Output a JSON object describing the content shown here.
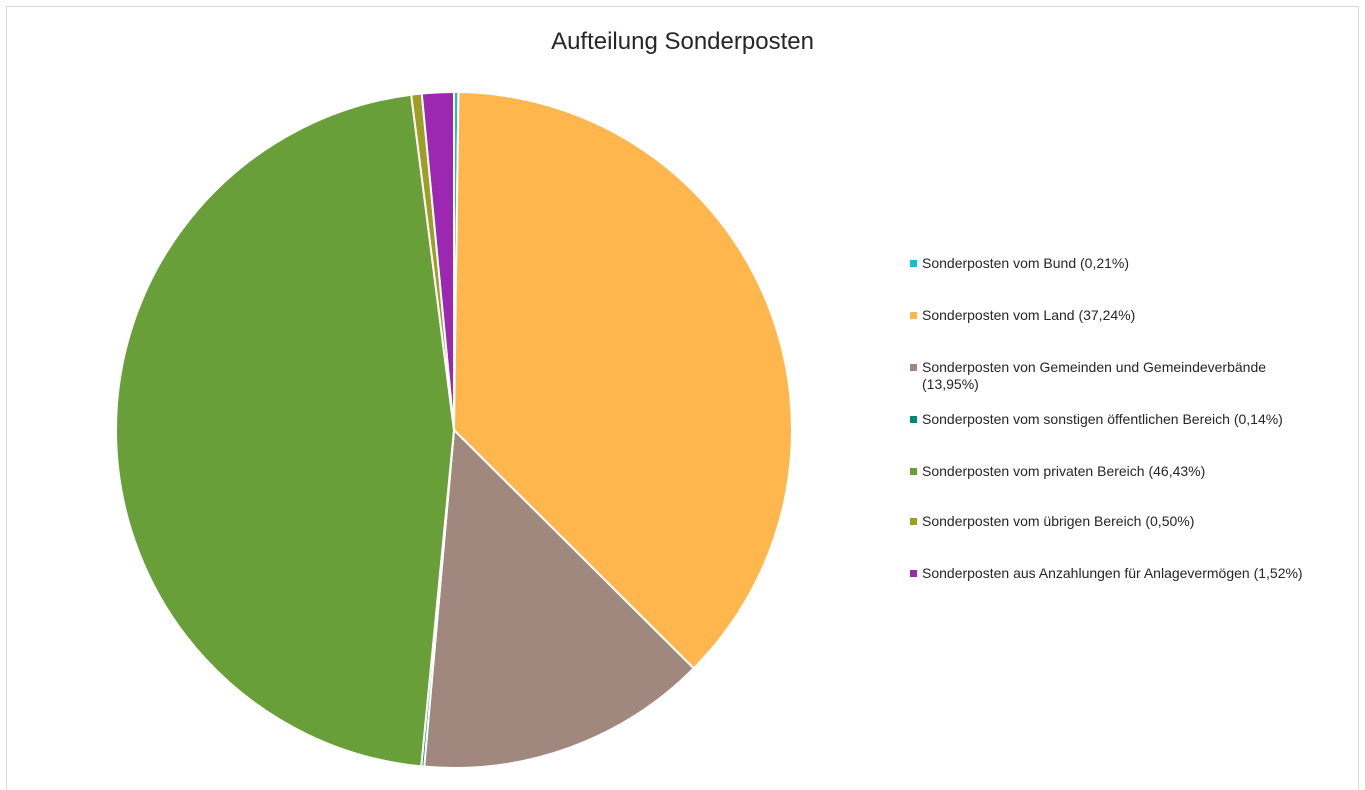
{
  "chart_data": {
    "type": "pie",
    "title": "Aufteilung Sonderposten",
    "legend_position": "right",
    "slices": [
      {
        "label": "Sonderposten vom Bund (0,21%)",
        "value": 0.21,
        "color": "#17becf"
      },
      {
        "label": "Sonderposten vom Land (37,24%)",
        "value": 37.24,
        "color": "#ffb74d"
      },
      {
        "label": "Sonderposten von Gemeinden und Gemeindeverbände (13,95%)",
        "value": 13.95,
        "color": "#a1887f"
      },
      {
        "label": "Sonderposten vom sonstigen öffentlichen Bereich (0,14%)",
        "value": 0.14,
        "color": "#00897b"
      },
      {
        "label": "Sonderposten vom privaten Bereich (46,43%)",
        "value": 46.43,
        "color": "#689f38"
      },
      {
        "label": "Sonderposten vom übrigen Bereich (0,50%)",
        "value": 0.5,
        "color": "#9e9d24"
      },
      {
        "label": "Sonderposten aus Anzahlungen für Anlagevermögen (1,52%)",
        "value": 1.52,
        "color": "#9c27b0"
      }
    ]
  }
}
